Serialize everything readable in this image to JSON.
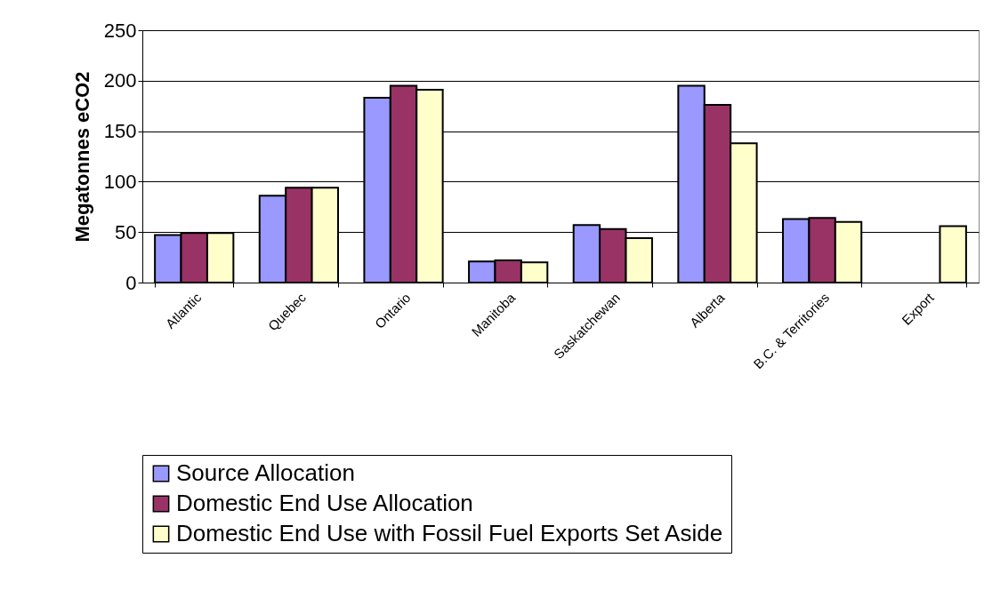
{
  "chart_data": {
    "type": "bar",
    "ylabel": "Megatonnes eCO2",
    "categories": [
      "Atlantic",
      "Quebec",
      "Ontario",
      "Manitoba",
      "Saskatchewan",
      "Alberta",
      "B.C. & Territories",
      "Export"
    ],
    "series": [
      {
        "name": "Source Allocation",
        "color": "#9999ff",
        "values": [
          47,
          86,
          183,
          21,
          57,
          195,
          63,
          null
        ]
      },
      {
        "name": "Domestic End Use Allocation",
        "color": "#993366",
        "values": [
          49,
          94,
          195,
          22,
          53,
          176,
          64,
          null
        ]
      },
      {
        "name": "Domestic End Use with Fossil Fuel Exports Set Aside",
        "color": "#ffffcc",
        "values": [
          49,
          94,
          191,
          20,
          44,
          138,
          60,
          56
        ]
      }
    ],
    "ylim": [
      0,
      250
    ],
    "yticks": [
      0,
      50,
      100,
      150,
      200,
      250
    ],
    "grid": "y",
    "legend": "bottom"
  }
}
